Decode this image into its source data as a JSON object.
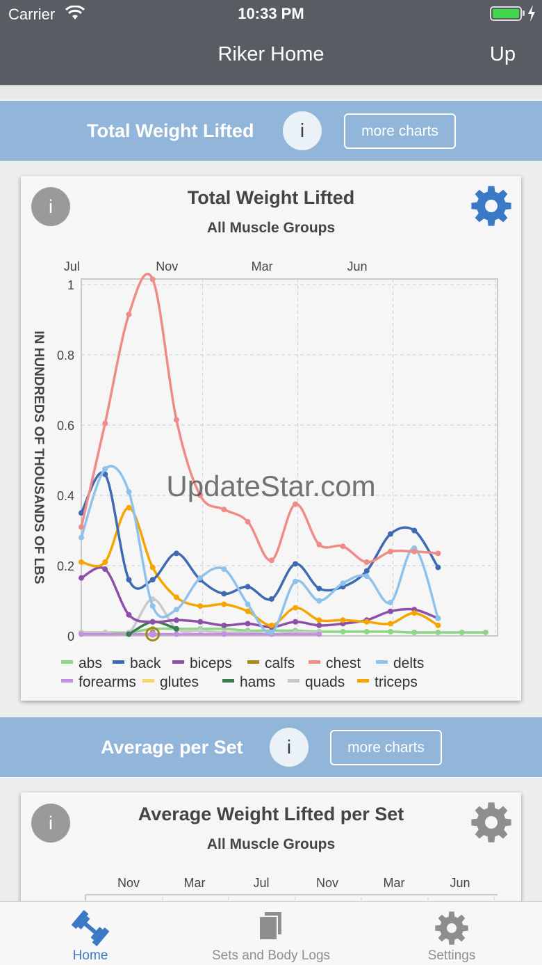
{
  "status_bar": {
    "carrier": "Carrier",
    "time": "10:33 PM"
  },
  "nav": {
    "title": "Riker Home",
    "right_button": "Up"
  },
  "section1": {
    "title": "Total Weight Lifted",
    "info": "i",
    "more": "more charts"
  },
  "card1": {
    "info": "i",
    "title": "Total Weight Lifted",
    "subtitle": "All Muscle Groups",
    "gear_color": "#3a79c5"
  },
  "section2": {
    "title": "Average per Set",
    "info": "i",
    "more": "more charts"
  },
  "card2": {
    "info": "i",
    "title": "Average Weight Lifted per Set",
    "subtitle": "All Muscle Groups",
    "x_ticks": [
      "Nov",
      "Mar",
      "Jul",
      "Nov",
      "Mar",
      "Jun"
    ],
    "gear_color": "#8e8e8e"
  },
  "watermark": "UpdateStar.com",
  "tabs": [
    {
      "label": "Home",
      "icon": "dumbbell-icon",
      "active": true
    },
    {
      "label": "Sets and Body Logs",
      "icon": "documents-icon",
      "active": false
    },
    {
      "label": "Settings",
      "icon": "gear-icon",
      "active": false
    }
  ],
  "chart_data": {
    "type": "line",
    "title": "Total Weight Lifted",
    "subtitle": "All Muscle Groups",
    "ylabel": "IN HUNDREDS OF THOUSANDS OF LBS",
    "x_ticks": [
      "Jul",
      "Nov",
      "Mar",
      "Jun"
    ],
    "y_ticks": [
      "1",
      "0.8",
      "0.6",
      "0.4",
      "0.2",
      "0"
    ],
    "ylim": [
      0,
      1.0
    ],
    "grid": true,
    "legend_position": "bottom",
    "series": [
      {
        "name": "abs",
        "color": "#8ed685",
        "values": [
          [
            0,
            0.01
          ],
          [
            1,
            0.01
          ],
          [
            2,
            0.01
          ],
          [
            3,
            0.02
          ],
          [
            4,
            0.02
          ],
          [
            5,
            0.02
          ],
          [
            6,
            0.02
          ],
          [
            7,
            0.015
          ],
          [
            8,
            0.015
          ],
          [
            9,
            0.015
          ],
          [
            10,
            0.012
          ],
          [
            11,
            0.012
          ],
          [
            12,
            0.012
          ],
          [
            13,
            0.012
          ],
          [
            14,
            0.01
          ],
          [
            15,
            0.01
          ],
          [
            16,
            0.01
          ],
          [
            17,
            0.01
          ]
        ]
      },
      {
        "name": "back",
        "color": "#3e69b3",
        "values": [
          [
            0,
            0.35
          ],
          [
            1,
            0.46
          ],
          [
            2,
            0.16
          ],
          [
            3,
            0.16
          ],
          [
            4,
            0.235
          ],
          [
            5,
            0.16
          ],
          [
            6,
            0.12
          ],
          [
            7,
            0.14
          ],
          [
            8,
            0.105
          ],
          [
            9,
            0.205
          ],
          [
            10,
            0.135
          ],
          [
            11,
            0.14
          ],
          [
            12,
            0.185
          ],
          [
            13,
            0.29
          ],
          [
            14,
            0.3
          ],
          [
            15,
            0.195
          ]
        ]
      },
      {
        "name": "biceps",
        "color": "#8e4fa8",
        "values": [
          [
            0,
            0.165
          ],
          [
            1,
            0.19
          ],
          [
            2,
            0.06
          ],
          [
            3,
            0.04
          ],
          [
            4,
            0.045
          ],
          [
            5,
            0.04
          ],
          [
            6,
            0.03
          ],
          [
            7,
            0.035
          ],
          [
            8,
            0.025
          ],
          [
            9,
            0.04
          ],
          [
            10,
            0.03
          ],
          [
            11,
            0.035
          ],
          [
            12,
            0.045
          ],
          [
            13,
            0.07
          ],
          [
            14,
            0.075
          ],
          [
            15,
            0.05
          ]
        ]
      },
      {
        "name": "calfs",
        "color": "#a38a1b",
        "values": [
          [
            3,
            0.01
          ]
        ]
      },
      {
        "name": "chest",
        "color": "#ef8c87",
        "values": [
          [
            0,
            0.31
          ],
          [
            1,
            0.605
          ],
          [
            2,
            0.915
          ],
          [
            3,
            1.015
          ],
          [
            4,
            0.615
          ],
          [
            5,
            0.4
          ],
          [
            6,
            0.36
          ],
          [
            7,
            0.325
          ],
          [
            8,
            0.215
          ],
          [
            9,
            0.375
          ],
          [
            10,
            0.26
          ],
          [
            11,
            0.255
          ],
          [
            12,
            0.21
          ],
          [
            13,
            0.24
          ],
          [
            14,
            0.24
          ],
          [
            15,
            0.235
          ]
        ]
      },
      {
        "name": "delts",
        "color": "#8ec2ea",
        "values": [
          [
            0,
            0.28
          ],
          [
            1,
            0.475
          ],
          [
            2,
            0.41
          ],
          [
            3,
            0.085
          ],
          [
            4,
            0.075
          ],
          [
            5,
            0.165
          ],
          [
            6,
            0.19
          ],
          [
            7,
            0.09
          ],
          [
            8,
            0.01
          ],
          [
            9,
            0.155
          ],
          [
            10,
            0.1
          ],
          [
            11,
            0.15
          ],
          [
            12,
            0.17
          ],
          [
            13,
            0.095
          ],
          [
            14,
            0.25
          ],
          [
            15,
            0.05
          ]
        ]
      },
      {
        "name": "forearms",
        "color": "#c38fe0",
        "values": [
          [
            0,
            0.005
          ],
          [
            2,
            0.005
          ],
          [
            3,
            0.005
          ],
          [
            4,
            0.005
          ],
          [
            6,
            0.005
          ],
          [
            8,
            0.005
          ],
          [
            10,
            0.005
          ]
        ]
      },
      {
        "name": "glutes",
        "color": "#f5d86a",
        "values": [
          [
            3,
            0.01
          ]
        ]
      },
      {
        "name": "hams",
        "color": "#3c7a50",
        "values": [
          [
            2,
            0.005
          ],
          [
            3,
            0.04
          ],
          [
            4,
            0.02
          ]
        ]
      },
      {
        "name": "quads",
        "color": "#c9c9c9",
        "values": [
          [
            0,
            0.01
          ],
          [
            1,
            0.01
          ],
          [
            2,
            0.01
          ],
          [
            3,
            0.105
          ],
          [
            4,
            0.02
          ],
          [
            5,
            0.015
          ],
          [
            6,
            0.01
          ],
          [
            7,
            0.01
          ],
          [
            8,
            0.005
          ],
          [
            9,
            0.01
          ],
          [
            10,
            0.01
          ]
        ]
      },
      {
        "name": "triceps",
        "color": "#f5a500",
        "values": [
          [
            0,
            0.21
          ],
          [
            1,
            0.21
          ],
          [
            2,
            0.365
          ],
          [
            3,
            0.195
          ],
          [
            4,
            0.11
          ],
          [
            5,
            0.085
          ],
          [
            6,
            0.09
          ],
          [
            7,
            0.07
          ],
          [
            8,
            0.03
          ],
          [
            9,
            0.08
          ],
          [
            10,
            0.045
          ],
          [
            11,
            0.045
          ],
          [
            12,
            0.04
          ],
          [
            13,
            0.035
          ],
          [
            14,
            0.065
          ],
          [
            15,
            0.03
          ]
        ]
      }
    ]
  }
}
